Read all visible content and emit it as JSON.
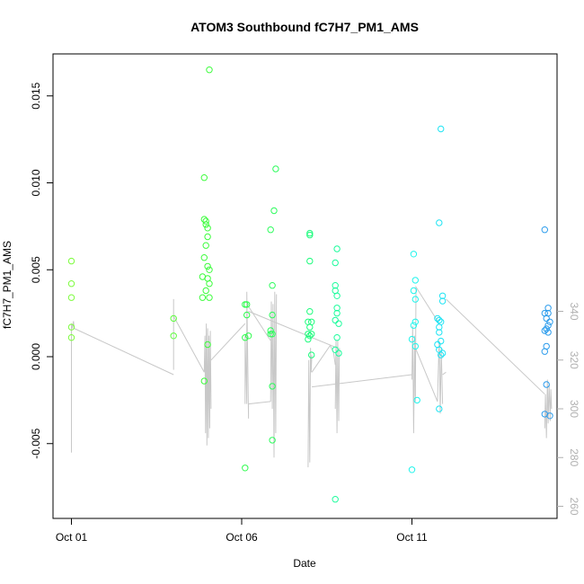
{
  "chart_data": {
    "type": "scatter",
    "title": "ATOM3 Southbound fC7H7_PM1_AMS",
    "xlabel": "Date",
    "ylabel": "fC7H7_PM1_AMS",
    "x_unit": "day of October",
    "xlim": [
      1,
      15.9
    ],
    "ylim": [
      -0.0093,
      0.0172
    ],
    "y2lim": [
      259,
      352
    ],
    "x_ticks": [
      {
        "value": 1,
        "label": "Oct 01"
      },
      {
        "value": 6,
        "label": "Oct 06"
      },
      {
        "value": 11,
        "label": "Oct 11"
      }
    ],
    "y_ticks": [
      {
        "value": -0.005,
        "label": "-0.005"
      },
      {
        "value": 0.0,
        "label": "0.000"
      },
      {
        "value": 0.005,
        "label": "0.005"
      },
      {
        "value": 0.01,
        "label": "0.010"
      },
      {
        "value": 0.015,
        "label": "0.015"
      }
    ],
    "y2_ticks": [
      {
        "value": 260,
        "label": "260"
      },
      {
        "value": 280,
        "label": "280"
      },
      {
        "value": 300,
        "label": "300"
      },
      {
        "value": 320,
        "label": "320"
      },
      {
        "value": 340,
        "label": "340"
      }
    ],
    "grid": false,
    "legend": "none",
    "point_style": "open circle, colored by date (green to blue)",
    "line_color": "#c8c8c8",
    "points": [
      {
        "x": 1.0,
        "y": 0.0055,
        "color": "#7cfc3c"
      },
      {
        "x": 1.0,
        "y": 0.0042,
        "color": "#7cfc3c"
      },
      {
        "x": 1.0,
        "y": 0.0034,
        "color": "#7cfc3c"
      },
      {
        "x": 1.0,
        "y": 0.0017,
        "color": "#7cfc3c"
      },
      {
        "x": 1.0,
        "y": 0.0011,
        "color": "#7cfc3c"
      },
      {
        "x": 4.0,
        "y": 0.0022,
        "color": "#5cfc3c"
      },
      {
        "x": 4.0,
        "y": 0.0012,
        "color": "#5cfc3c"
      },
      {
        "x": 4.9,
        "y": 0.0103,
        "color": "#3cfc3c"
      },
      {
        "x": 4.9,
        "y": 0.0079,
        "color": "#3cfc3c"
      },
      {
        "x": 4.95,
        "y": 0.0078,
        "color": "#3cfc3c"
      },
      {
        "x": 4.95,
        "y": 0.0076,
        "color": "#3cfc3c"
      },
      {
        "x": 5.0,
        "y": 0.0074,
        "color": "#3cfc3c"
      },
      {
        "x": 5.0,
        "y": 0.0069,
        "color": "#3cfc3c"
      },
      {
        "x": 4.95,
        "y": 0.0064,
        "color": "#3cfc3c"
      },
      {
        "x": 4.9,
        "y": 0.0057,
        "color": "#3cfc3c"
      },
      {
        "x": 5.0,
        "y": 0.0052,
        "color": "#3cfc3c"
      },
      {
        "x": 5.05,
        "y": 0.005,
        "color": "#3cfc3c"
      },
      {
        "x": 4.85,
        "y": 0.0046,
        "color": "#3cfc3c"
      },
      {
        "x": 5.0,
        "y": 0.0045,
        "color": "#3cfc3c"
      },
      {
        "x": 5.05,
        "y": 0.0042,
        "color": "#3cfc3c"
      },
      {
        "x": 4.95,
        "y": 0.0038,
        "color": "#3cfc3c"
      },
      {
        "x": 4.85,
        "y": 0.0034,
        "color": "#3cfc3c"
      },
      {
        "x": 5.05,
        "y": 0.0034,
        "color": "#3cfc3c"
      },
      {
        "x": 5.0,
        "y": 0.0007,
        "color": "#3cfc3c"
      },
      {
        "x": 4.9,
        "y": -0.0014,
        "color": "#3cfc3c"
      },
      {
        "x": 5.05,
        "y": 0.0165,
        "color": "#3cfc3c"
      },
      {
        "x": 6.1,
        "y": 0.003,
        "color": "#2cfc4c"
      },
      {
        "x": 6.15,
        "y": 0.003,
        "color": "#2cfc4c"
      },
      {
        "x": 6.15,
        "y": 0.0024,
        "color": "#2cfc4c"
      },
      {
        "x": 6.1,
        "y": 0.0011,
        "color": "#2cfc4c"
      },
      {
        "x": 6.2,
        "y": 0.0012,
        "color": "#2cfc4c"
      },
      {
        "x": 6.1,
        "y": -0.0064,
        "color": "#2cfc4c"
      },
      {
        "x": 6.85,
        "y": 0.0073,
        "color": "#2cfc5c"
      },
      {
        "x": 7.0,
        "y": 0.0108,
        "color": "#2cfc5c"
      },
      {
        "x": 6.95,
        "y": 0.0084,
        "color": "#2cfc5c"
      },
      {
        "x": 6.9,
        "y": 0.0041,
        "color": "#2cfc5c"
      },
      {
        "x": 6.9,
        "y": 0.0024,
        "color": "#2cfc5c"
      },
      {
        "x": 6.85,
        "y": 0.0015,
        "color": "#2cfc5c"
      },
      {
        "x": 6.85,
        "y": 0.0013,
        "color": "#2cfc5c"
      },
      {
        "x": 6.9,
        "y": 0.0013,
        "color": "#2cfc5c"
      },
      {
        "x": 6.9,
        "y": -0.0017,
        "color": "#2cfc5c"
      },
      {
        "x": 6.9,
        "y": -0.0048,
        "color": "#2cfc5c"
      },
      {
        "x": 8.0,
        "y": 0.0071,
        "color": "#1cfc7c"
      },
      {
        "x": 8.0,
        "y": 0.007,
        "color": "#1cfc7c"
      },
      {
        "x": 8.0,
        "y": 0.0055,
        "color": "#1cfc7c"
      },
      {
        "x": 8.0,
        "y": 0.0026,
        "color": "#1cfc7c"
      },
      {
        "x": 7.95,
        "y": 0.002,
        "color": "#1cfc7c"
      },
      {
        "x": 8.05,
        "y": 0.002,
        "color": "#1cfc7c"
      },
      {
        "x": 8.0,
        "y": 0.0017,
        "color": "#1cfc7c"
      },
      {
        "x": 7.95,
        "y": 0.0013,
        "color": "#1cfc7c"
      },
      {
        "x": 8.05,
        "y": 0.0013,
        "color": "#1cfc7c"
      },
      {
        "x": 8.0,
        "y": 0.0012,
        "color": "#1cfc7c"
      },
      {
        "x": 7.95,
        "y": 0.001,
        "color": "#1cfc7c"
      },
      {
        "x": 8.05,
        "y": 0.0001,
        "color": "#1cfc7c"
      },
      {
        "x": 8.8,
        "y": 0.0062,
        "color": "#1cfc9c"
      },
      {
        "x": 8.75,
        "y": 0.0054,
        "color": "#1cfc9c"
      },
      {
        "x": 8.75,
        "y": 0.0041,
        "color": "#1cfc9c"
      },
      {
        "x": 8.75,
        "y": 0.0038,
        "color": "#1cfc9c"
      },
      {
        "x": 8.8,
        "y": 0.0035,
        "color": "#1cfc9c"
      },
      {
        "x": 8.8,
        "y": 0.0028,
        "color": "#1cfc9c"
      },
      {
        "x": 8.8,
        "y": 0.0025,
        "color": "#1cfc9c"
      },
      {
        "x": 8.75,
        "y": 0.0021,
        "color": "#1cfc9c"
      },
      {
        "x": 8.85,
        "y": 0.0019,
        "color": "#1cfc9c"
      },
      {
        "x": 8.8,
        "y": 0.0011,
        "color": "#1cfc9c"
      },
      {
        "x": 8.75,
        "y": 0.0004,
        "color": "#1cfc9c"
      },
      {
        "x": 8.85,
        "y": 0.0002,
        "color": "#1cfc9c"
      },
      {
        "x": 8.75,
        "y": -0.0082,
        "color": "#1cfc9c"
      },
      {
        "x": 11.05,
        "y": 0.0059,
        "color": "#20f4ec"
      },
      {
        "x": 11.1,
        "y": 0.0044,
        "color": "#20f4ec"
      },
      {
        "x": 11.05,
        "y": 0.0038,
        "color": "#20f4ec"
      },
      {
        "x": 11.1,
        "y": 0.0033,
        "color": "#20f4ec"
      },
      {
        "x": 11.1,
        "y": 0.002,
        "color": "#20f4ec"
      },
      {
        "x": 11.05,
        "y": 0.0018,
        "color": "#20f4ec"
      },
      {
        "x": 11.0,
        "y": 0.001,
        "color": "#20f4ec"
      },
      {
        "x": 11.1,
        "y": 0.0006,
        "color": "#20f4ec"
      },
      {
        "x": 11.15,
        "y": -0.0025,
        "color": "#20f4ec"
      },
      {
        "x": 11.0,
        "y": -0.0065,
        "color": "#20f4ec"
      },
      {
        "x": 11.85,
        "y": 0.0131,
        "color": "#20e4f4"
      },
      {
        "x": 11.8,
        "y": 0.0077,
        "color": "#20e4f4"
      },
      {
        "x": 11.9,
        "y": 0.0035,
        "color": "#20e4f4"
      },
      {
        "x": 11.9,
        "y": 0.0032,
        "color": "#20e4f4"
      },
      {
        "x": 11.75,
        "y": 0.0022,
        "color": "#20e4f4"
      },
      {
        "x": 11.8,
        "y": 0.0021,
        "color": "#20e4f4"
      },
      {
        "x": 11.85,
        "y": 0.002,
        "color": "#20e4f4"
      },
      {
        "x": 11.8,
        "y": 0.0017,
        "color": "#20e4f4"
      },
      {
        "x": 11.8,
        "y": 0.0014,
        "color": "#20e4f4"
      },
      {
        "x": 11.85,
        "y": 0.0009,
        "color": "#20e4f4"
      },
      {
        "x": 11.75,
        "y": 0.0007,
        "color": "#20e4f4"
      },
      {
        "x": 11.8,
        "y": 0.0004,
        "color": "#20e4f4"
      },
      {
        "x": 11.9,
        "y": 0.0002,
        "color": "#20e4f4"
      },
      {
        "x": 11.85,
        "y": 0.0001,
        "color": "#20e4f4"
      },
      {
        "x": 11.8,
        "y": -0.003,
        "color": "#20e4f4"
      },
      {
        "x": 14.9,
        "y": 0.0073,
        "color": "#2c9cec"
      },
      {
        "x": 15.0,
        "y": 0.0028,
        "color": "#2c9cec"
      },
      {
        "x": 14.9,
        "y": 0.0025,
        "color": "#2c9cec"
      },
      {
        "x": 15.0,
        "y": 0.0025,
        "color": "#2c9cec"
      },
      {
        "x": 14.95,
        "y": 0.0022,
        "color": "#2c9cec"
      },
      {
        "x": 15.05,
        "y": 0.002,
        "color": "#2c9cec"
      },
      {
        "x": 15.0,
        "y": 0.0018,
        "color": "#2c9cec"
      },
      {
        "x": 14.95,
        "y": 0.0016,
        "color": "#2c9cec"
      },
      {
        "x": 14.9,
        "y": 0.0015,
        "color": "#2c9cec"
      },
      {
        "x": 15.0,
        "y": 0.0014,
        "color": "#2c9cec"
      },
      {
        "x": 14.95,
        "y": 0.0006,
        "color": "#2c9cec"
      },
      {
        "x": 14.9,
        "y": 0.0003,
        "color": "#2c9cec"
      },
      {
        "x": 14.95,
        "y": -0.0016,
        "color": "#2c9cec"
      },
      {
        "x": 14.9,
        "y": -0.0033,
        "color": "#2c9cec"
      },
      {
        "x": 15.05,
        "y": -0.0034,
        "color": "#2c9cec"
      }
    ],
    "line_segments": [
      [
        [
          1.0,
          282
        ],
        [
          1.0,
          335
        ],
        [
          1.03,
          333
        ],
        [
          1.06,
          336
        ],
        [
          1.08,
          333
        ]
      ],
      [
        [
          1.08,
          333
        ],
        [
          4.0,
          314
        ]
      ],
      [
        [
          4.0,
          316
        ],
        [
          4.0,
          345
        ],
        [
          4.0,
          338
        ],
        [
          4.9,
          315
        ]
      ],
      [
        [
          4.9,
          315
        ],
        [
          4.92,
          330
        ],
        [
          4.94,
          290
        ],
        [
          4.96,
          335
        ],
        [
          4.98,
          285
        ],
        [
          5.0,
          333
        ],
        [
          5.02,
          288
        ],
        [
          5.04,
          330
        ],
        [
          5.06,
          292
        ],
        [
          5.08,
          332
        ],
        [
          5.1,
          300
        ]
      ],
      [
        [
          5.1,
          320
        ],
        [
          6.1,
          335
        ]
      ],
      [
        [
          6.1,
          302
        ],
        [
          6.1,
          330
        ],
        [
          6.15,
          302
        ],
        [
          6.15,
          348
        ],
        [
          6.2,
          296
        ],
        [
          6.2,
          302
        ],
        [
          6.85,
          303
        ]
      ],
      [
        [
          6.2,
          342
        ],
        [
          6.85,
          328
        ]
      ],
      [
        [
          6.85,
          303
        ],
        [
          6.87,
          344
        ],
        [
          6.9,
          300
        ],
        [
          6.92,
          343
        ],
        [
          6.95,
          280
        ],
        [
          6.97,
          348
        ],
        [
          7.0,
          290
        ],
        [
          7.02,
          347
        ]
      ],
      [
        [
          6.2,
          340
        ],
        [
          8.8,
          325
        ]
      ],
      [
        [
          7.95,
          276
        ],
        [
          7.97,
          320
        ],
        [
          8.0,
          278
        ],
        [
          8.02,
          325
        ],
        [
          8.04,
          315
        ],
        [
          8.06,
          322
        ]
      ],
      [
        [
          8.06,
          315
        ],
        [
          8.6,
          326
        ],
        [
          8.7,
          323
        ],
        [
          8.75,
          318
        ]
      ],
      [
        [
          8.75,
          300
        ],
        [
          8.77,
          328
        ],
        [
          8.8,
          290
        ],
        [
          8.82,
          328
        ],
        [
          8.85,
          295
        ],
        [
          8.87,
          325
        ]
      ],
      [
        [
          8.06,
          309
        ],
        [
          11.0,
          314
        ]
      ],
      [
        [
          11.0,
          312
        ],
        [
          11.02,
          334
        ],
        [
          11.05,
          290
        ],
        [
          11.08,
          330
        ],
        [
          11.1,
          305
        ]
      ],
      [
        [
          11.1,
          303
        ],
        [
          11.12,
          350
        ],
        [
          11.8,
          335
        ]
      ],
      [
        [
          11.1,
          325
        ],
        [
          11.75,
          303
        ],
        [
          11.8,
          328
        ],
        [
          11.83,
          298
        ],
        [
          11.86,
          325
        ],
        [
          11.9,
          302
        ]
      ],
      [
        [
          11.9,
          314
        ],
        [
          12.0,
          315
        ]
      ],
      [
        [
          12.0,
          345
        ],
        [
          14.9,
          306
        ]
      ],
      [
        [
          14.9,
          292
        ],
        [
          14.92,
          306
        ],
        [
          14.95,
          288
        ],
        [
          14.98,
          312
        ],
        [
          15.0,
          294
        ],
        [
          15.03,
          310
        ],
        [
          15.06,
          295
        ],
        [
          15.08,
          308
        ],
        [
          15.1,
          300
        ]
      ]
    ]
  }
}
